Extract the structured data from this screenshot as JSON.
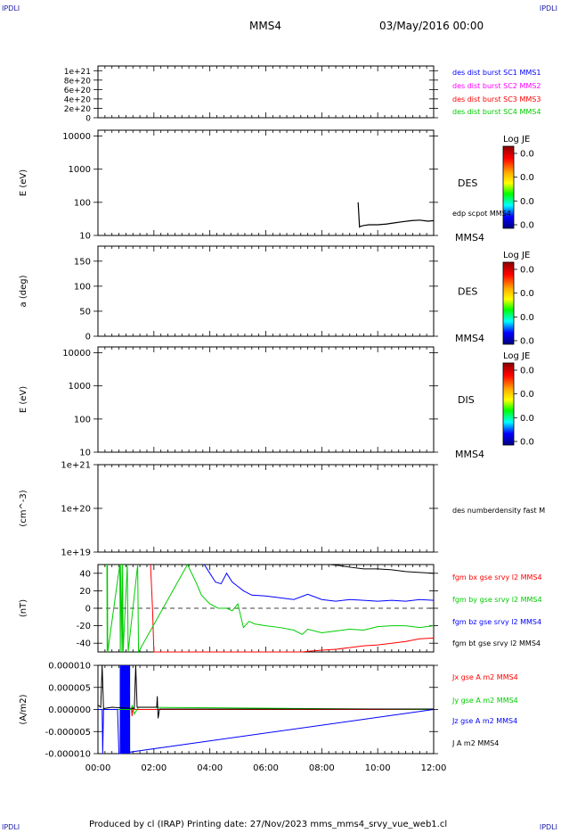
{
  "header": {
    "corner_tl": "IPDLI",
    "corner_tr": "IPDLI",
    "corner_bl": "IPDLI",
    "corner_br": "IPDLI",
    "spacecraft": "MMS4",
    "datetime": "03/May/2016 00:00"
  },
  "footer": {
    "text": "Produced by cl (IRAP)   Printing date: 27/Nov/2023   mms_mms4_srvy_vue_web1.cl"
  },
  "colors": {
    "frame": "#000000",
    "blue": "#0000ff",
    "magenta": "#ff00ff",
    "red": "#ff0000",
    "green": "#00ff00",
    "dark": "#000000"
  },
  "chart_data": [
    {
      "id": "p1",
      "type": "line",
      "ylabel": "",
      "yticks": [
        "1e+21",
        "8e+20",
        "6e+20",
        "4e+20",
        "2e+20",
        "0"
      ],
      "ytick_values": [
        1e+21,
        8e+20,
        6e+20,
        4e+20,
        2e+20,
        0
      ],
      "ylim": [
        0,
        1.1e+21
      ],
      "dashed_zero": true,
      "series": [
        {
          "name": "des dist burst SC1 MMS1",
          "color": "#0000ff",
          "x": [],
          "y": []
        },
        {
          "name": "des dist burst SC2 MMS2",
          "color": "#ff00ff",
          "x": [],
          "y": []
        },
        {
          "name": "des dist burst SC3 MMS3",
          "color": "#ff0000",
          "x": [],
          "y": []
        },
        {
          "name": "des dist burst SC4 MMS4",
          "color": "#00cc00",
          "x": [],
          "y": []
        }
      ]
    },
    {
      "id": "p2",
      "type": "heatmap",
      "ylabel": "E (eV)",
      "yscale": "log",
      "yticks": [
        "10000",
        "1000",
        "100",
        "10"
      ],
      "ytick_values": [
        10000,
        1000,
        100,
        10
      ],
      "ylim": [
        10,
        15000
      ],
      "label": "DES",
      "spacecraft": "MMS4",
      "colorbar": {
        "title": "Log JE",
        "ticks": [
          "0.0",
          "0.0",
          "0.0",
          "0.0"
        ]
      },
      "overlay": {
        "name": "edp scpot MMS4",
        "x": [
          9.3,
          9.35,
          9.4,
          9.5,
          9.7,
          10.0,
          10.3,
          10.6,
          10.9,
          11.2,
          11.5,
          11.8,
          12.0
        ],
        "y": [
          100,
          18,
          19,
          20,
          21,
          21,
          22,
          24,
          26,
          28,
          29,
          27,
          28
        ]
      }
    },
    {
      "id": "p3",
      "type": "heatmap",
      "ylabel": "a (deg)",
      "yticks": [
        "150",
        "100",
        "50",
        "0"
      ],
      "ytick_values": [
        150,
        100,
        50,
        0
      ],
      "ylim": [
        0,
        180
      ],
      "label": "DES",
      "spacecraft": "MMS4",
      "colorbar": {
        "title": "Log JE",
        "ticks": [
          "0.0",
          "0.0",
          "0.0",
          "0.0"
        ]
      }
    },
    {
      "id": "p4",
      "type": "heatmap",
      "ylabel": "E (eV)",
      "yscale": "log",
      "yticks": [
        "10000",
        "1000",
        "100",
        "10"
      ],
      "ytick_values": [
        10000,
        1000,
        100,
        10
      ],
      "ylim": [
        10,
        15000
      ],
      "label": "DIS",
      "spacecraft": "MMS4",
      "colorbar": {
        "title": "Log JE",
        "ticks": [
          "0.0",
          "0.0",
          "0.0",
          "0.0"
        ]
      }
    },
    {
      "id": "p5",
      "type": "line",
      "ylabel": "(cm^-3)",
      "yscale": "log",
      "yticks": [
        "1e+21",
        "1e+20",
        "1e+19"
      ],
      "ytick_values": [
        1e+21,
        1e+20,
        1e+19
      ],
      "ylim": [
        1e+19,
        1e+21
      ],
      "series": [
        {
          "name": "des numberdensity fast M",
          "color": "#000000",
          "x": [],
          "y": []
        }
      ]
    },
    {
      "id": "p6",
      "type": "line",
      "ylabel": "(nT)",
      "yticks": [
        "40",
        "20",
        "0",
        "-20",
        "-40"
      ],
      "ytick_values": [
        40,
        20,
        0,
        -20,
        -40
      ],
      "ylim": [
        -50,
        50
      ],
      "dashed_zero": true,
      "series": [
        {
          "name": "fgm bx gse srvy l2 MMS4",
          "color": "#ff0000",
          "x": [
            1.88,
            1.95,
            2.0,
            7.3,
            7.6,
            8.0,
            8.5,
            9.0,
            9.5,
            10.0,
            10.5,
            11.0,
            11.5,
            12.0
          ],
          "y": [
            50,
            0,
            -50,
            -50,
            -49,
            -48,
            -47,
            -45,
            -43,
            -42,
            -40,
            -38,
            -35,
            -34
          ]
        },
        {
          "name": "fgm by gse srvy l2 MMS4",
          "color": "#00cc00",
          "x": [
            0.32,
            0.33,
            0.34,
            0.35,
            0.78,
            0.8,
            0.82,
            0.86,
            0.88,
            0.9,
            1.05,
            1.08,
            1.42,
            1.45,
            3.2,
            3.5,
            3.7,
            4.0,
            4.3,
            4.6,
            4.8,
            5.0,
            5.2,
            5.4,
            5.6,
            6.0,
            6.5,
            7.0,
            7.3,
            7.5,
            8.0,
            8.5,
            9.0,
            9.5,
            10.0,
            10.5,
            11.0,
            11.5,
            12.0
          ],
          "y": [
            50,
            -50,
            50,
            -50,
            50,
            -50,
            50,
            -50,
            50,
            -50,
            50,
            -50,
            50,
            -50,
            50,
            30,
            15,
            5,
            0,
            0,
            -3,
            5,
            -22,
            -15,
            -18,
            -20,
            -22,
            -25,
            -30,
            -24,
            -28,
            -26,
            -24,
            -25,
            -21,
            -20,
            -20,
            -22,
            -20
          ]
        },
        {
          "name": "fgm bz gse srvy l2 MMS4",
          "color": "#0000ff",
          "x": [
            3.8,
            4.0,
            4.2,
            4.4,
            4.6,
            4.8,
            5.0,
            5.2,
            5.5,
            6.0,
            6.5,
            7.0,
            7.5,
            8.0,
            8.5,
            9.0,
            9.5,
            10.0,
            10.5,
            11.0,
            11.5,
            12.0
          ],
          "y": [
            50,
            40,
            30,
            28,
            40,
            30,
            25,
            20,
            15,
            14,
            12,
            10,
            16,
            10,
            8,
            10,
            9,
            8,
            9,
            8,
            10,
            9
          ]
        },
        {
          "name": "fgm bt gse srvy l2 MMS4",
          "color": "#000000",
          "x": [
            8.3,
            8.6,
            9.0,
            9.5,
            10.0,
            10.5,
            11.0,
            11.5,
            12.0
          ],
          "y": [
            50,
            49,
            47,
            45,
            45,
            44,
            42,
            41,
            40
          ]
        }
      ]
    },
    {
      "id": "p7",
      "type": "line",
      "ylabel": "(A/m2)",
      "yticks": [
        "0.000010",
        "0.000005",
        "0.000000",
        "-0.000005",
        "-0.000010"
      ],
      "ytick_values": [
        1e-05,
        5e-06,
        0,
        -5e-06,
        -1e-05
      ],
      "ylim": [
        -1e-05,
        1e-05
      ],
      "series": [
        {
          "name": "Jx gse A m2 MMS4",
          "color": "#ff0000",
          "x": [
            0.0,
            1.2,
            1.22,
            1.25,
            1.3,
            12.0
          ],
          "y": [
            0,
            0,
            -1.5e-06,
            5e-07,
            0,
            0
          ]
        },
        {
          "name": "Jy gse A m2 MMS4",
          "color": "#00cc00",
          "x": [
            0.0,
            1.2,
            1.22,
            1.3,
            1.4,
            1.45,
            12.0
          ],
          "y": [
            0,
            0,
            1e-06,
            -1e-06,
            0,
            5e-07,
            0
          ]
        },
        {
          "name": "Jz gse A m2 MMS4",
          "color": "#0000ff",
          "x": [
            0.0,
            0.15,
            0.17,
            0.2,
            0.3,
            0.5,
            0.7,
            0.75,
            12.0
          ],
          "y": [
            0,
            0,
            -1e-05,
            0,
            0,
            0,
            0,
            -1e-05,
            0
          ]
        },
        {
          "name": "J A m2 MMS4",
          "color": "#000000",
          "x": [
            0.0,
            0.1,
            0.15,
            0.2,
            0.5,
            1.3,
            1.35,
            1.4,
            2.1,
            2.12,
            2.15,
            2.2,
            12.0
          ],
          "y": [
            1e-06,
            5e-07,
            1e-05,
            2e-07,
            5e-07,
            2e-07,
            1e-05,
            5e-07,
            5e-07,
            3e-06,
            -2e-06,
            1e-07,
            1e-07
          ]
        }
      ],
      "burst": {
        "x_start": 0.78,
        "x_end": 1.15,
        "color": "#0000ff"
      }
    }
  ],
  "xaxis": {
    "ticks": [
      "00:00",
      "02:00",
      "04:00",
      "06:00",
      "08:00",
      "10:00",
      "12:00"
    ],
    "tick_values": [
      0,
      2,
      4,
      6,
      8,
      10,
      12
    ],
    "xlim": [
      0,
      12
    ]
  }
}
